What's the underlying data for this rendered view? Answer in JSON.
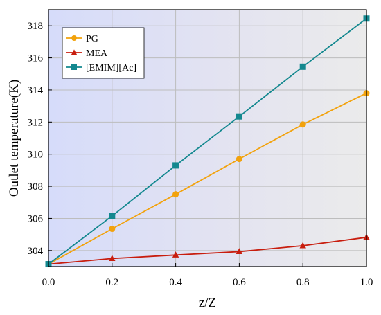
{
  "chart_data": {
    "type": "line",
    "xlabel": "z/Z",
    "ylabel": "Outlet temperature(K)",
    "xlim": [
      0.0,
      1.0
    ],
    "ylim": [
      303.0,
      319.0
    ],
    "x_ticks": [
      0.0,
      0.2,
      0.4,
      0.6,
      0.8,
      1.0
    ],
    "x_tick_labels": [
      "0.0",
      "0.2",
      "0.4",
      "0.6",
      "0.8",
      "1.0"
    ],
    "y_ticks": [
      304,
      306,
      308,
      310,
      312,
      314,
      316,
      318
    ],
    "y_tick_labels": [
      "304",
      "306",
      "308",
      "310",
      "312",
      "314",
      "316",
      "318"
    ],
    "grid": true,
    "legend_position": "top-left",
    "x": [
      0.0,
      0.2,
      0.4,
      0.6,
      0.8,
      1.0
    ],
    "series": [
      {
        "name": "PG",
        "values": [
          303.15,
          305.35,
          307.5,
          309.7,
          311.85,
          313.8
        ],
        "color": "#f2a20c",
        "marker": "circle"
      },
      {
        "name": "MEA",
        "values": [
          303.15,
          303.5,
          303.72,
          303.93,
          304.3,
          304.82
        ],
        "color": "#c81d0e",
        "marker": "triangle"
      },
      {
        "name": "[EMIM][Ac]",
        "values": [
          303.15,
          306.15,
          309.3,
          312.35,
          315.45,
          318.45
        ],
        "color": "#13888f",
        "marker": "square"
      }
    ]
  }
}
